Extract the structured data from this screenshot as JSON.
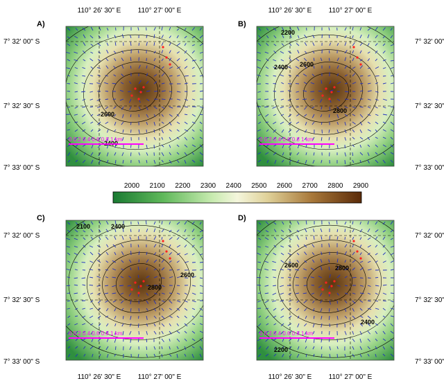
{
  "panels": [
    {
      "label": "A)",
      "contour_labels": [
        "2600",
        "2400"
      ]
    },
    {
      "label": "B)",
      "contour_labels": [
        "2200",
        "2400",
        "2600",
        "2800"
      ]
    },
    {
      "label": "C)",
      "contour_labels": [
        "2100",
        "2400",
        "2600",
        "2800"
      ]
    },
    {
      "label": "D)",
      "contour_labels": [
        "2600",
        "2800",
        "2400",
        "2200"
      ]
    }
  ],
  "longitude_labels": [
    "110° 26' 30\" E",
    "110° 27' 00\" E"
  ],
  "latitude_labels": [
    "7° 32' 00\" S",
    "7° 32' 30\" S",
    "7° 33' 00\" S"
  ],
  "colorbar": {
    "ticks": [
      "2000",
      "2100",
      "2200",
      "2300",
      "2400",
      "2500",
      "2600",
      "2700",
      "2800",
      "2900"
    ]
  },
  "scale_bar": "0   0.2  0.4  0.6  0.8  1 km"
}
